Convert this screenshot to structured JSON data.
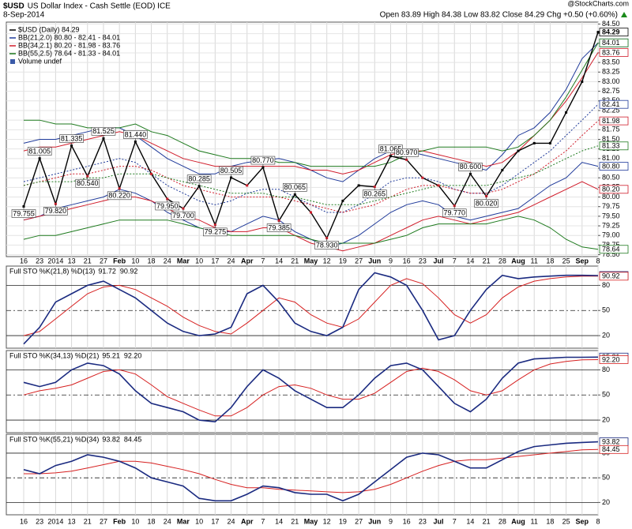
{
  "chart_data": [
    {
      "type": "line",
      "symbol": "$USD",
      "title": "US Dollar Index - Cash Settle (EOD) ICE",
      "date": "8-Sep-2014",
      "source": "@StockCharts.com",
      "quote": "Open 83.89 High 84.38 Low 83.82 Close 84.29 Chg +0.50 (+0.60%)",
      "volume_legend": "Volume undef",
      "categories": [
        "16",
        "23",
        "2014",
        "13",
        "21",
        "27",
        "Feb",
        "10",
        "18",
        "24",
        "Mar",
        "10",
        "17",
        "24",
        "Apr",
        "7",
        "14",
        "21",
        "May",
        "12",
        "19",
        "27",
        "Jun",
        "9",
        "16",
        "23",
        "Jul",
        "7",
        "14",
        "21",
        "28",
        "Aug",
        "11",
        "18",
        "25",
        "Sep",
        "8"
      ],
      "ylim": [
        78.45,
        84.55
      ],
      "yticks": [
        {
          "value": 78.5,
          "label": "78.50"
        },
        78.75,
        {
          "value": 79,
          "label": "79.00"
        },
        79.25,
        {
          "value": 79.5,
          "label": "79.50"
        },
        79.75,
        {
          "value": 80,
          "label": "80.00"
        },
        80.25,
        {
          "value": 80.5,
          "label": "80.50"
        },
        80.75,
        {
          "value": 81,
          "label": "81.00"
        },
        81.25,
        {
          "value": 81.5,
          "label": "81.50"
        },
        81.75,
        {
          "value": 82,
          "label": "82.00"
        },
        82.25,
        {
          "value": 82.5,
          "label": "82.50"
        },
        82.75,
        {
          "value": 83,
          "label": "83.00"
        },
        83.25,
        {
          "value": 83.5,
          "label": "83.50"
        },
        83.75,
        {
          "value": 84,
          "label": "84.00"
        },
        84.25,
        {
          "value": 84.5,
          "label": "84.50"
        }
      ],
      "series": [
        {
          "name": "$USD (Daily) 84.29",
          "color": "#000000",
          "values": [
            79.755,
            81.005,
            79.82,
            81.335,
            80.54,
            81.525,
            80.22,
            81.44,
            80.6,
            79.95,
            79.7,
            80.285,
            79.275,
            80.505,
            80.3,
            80.77,
            79.385,
            80.065,
            79.6,
            78.93,
            79.9,
            80.3,
            80.265,
            81.065,
            80.97,
            80.5,
            80.3,
            79.77,
            80.6,
            80.02,
            80.7,
            81.2,
            81.4,
            81.4,
            82.2,
            83.0,
            84.29
          ],
          "value_labels": [
            "79.755",
            "81.005",
            "79.820",
            "81.335",
            "80.540",
            "81.525",
            "80.220",
            "81.440",
            null,
            "79.950",
            "79.700",
            "80.285",
            "79.275",
            "80.505",
            null,
            "80.770",
            "79.385",
            "80.065",
            null,
            "78.930",
            null,
            null,
            "80.265",
            "81.065",
            "80.970",
            null,
            null,
            "79.770",
            "80.600",
            "80.020",
            null,
            null,
            null,
            null,
            null,
            null,
            null
          ],
          "end_labels": [
            "84.29"
          ]
        },
        {
          "name": "BB(21,2.0) 80.80 - 82.41 - 84.01",
          "color": "#1f3a9a",
          "lower": [
            79.4,
            79.5,
            79.7,
            79.8,
            79.9,
            80.0,
            80.2,
            80.1,
            79.9,
            79.6,
            79.4,
            79.2,
            79.1,
            79.1,
            79.3,
            79.5,
            79.4,
            79.1,
            78.9,
            78.7,
            78.8,
            79.0,
            79.3,
            79.6,
            79.8,
            79.9,
            79.8,
            79.5,
            79.4,
            79.5,
            79.6,
            79.7,
            80.0,
            80.3,
            80.5,
            80.9,
            80.8
          ],
          "values": [
            80.4,
            80.5,
            80.6,
            80.7,
            80.8,
            80.9,
            81.0,
            80.9,
            80.6,
            80.3,
            80.1,
            79.9,
            79.8,
            79.9,
            80.1,
            80.2,
            80.2,
            80.0,
            79.8,
            79.6,
            79.6,
            79.8,
            80.1,
            80.4,
            80.5,
            80.5,
            80.4,
            80.2,
            80.1,
            80.1,
            80.3,
            80.6,
            80.9,
            81.2,
            81.6,
            82.0,
            82.41
          ],
          "upper": [
            81.4,
            81.5,
            81.5,
            81.6,
            81.7,
            81.8,
            81.8,
            81.6,
            81.3,
            81.0,
            80.8,
            80.6,
            80.6,
            80.8,
            80.9,
            80.95,
            81.0,
            80.9,
            80.7,
            80.5,
            80.4,
            80.7,
            81.0,
            81.2,
            81.2,
            81.1,
            81.0,
            80.9,
            80.8,
            80.7,
            81.1,
            81.6,
            81.8,
            82.2,
            82.8,
            83.6,
            84.01
          ],
          "end_labels": [
            "80.80",
            "82.41",
            "84.01"
          ]
        },
        {
          "name": "BB(34,2.1) 80.20 - 81.98 - 83.76",
          "color": "#d01c2a",
          "lower": [
            79.4,
            79.5,
            79.6,
            79.7,
            79.8,
            79.9,
            80.0,
            80.0,
            79.9,
            79.7,
            79.5,
            79.4,
            79.2,
            79.1,
            79.1,
            79.2,
            79.2,
            79.0,
            78.8,
            78.7,
            78.6,
            78.7,
            78.8,
            79.0,
            79.2,
            79.4,
            79.5,
            79.4,
            79.3,
            79.4,
            79.5,
            79.6,
            79.8,
            80.0,
            80.2,
            80.4,
            80.2
          ],
          "values": [
            80.3,
            80.4,
            80.5,
            80.6,
            80.6,
            80.7,
            80.8,
            80.8,
            80.7,
            80.5,
            80.3,
            80.2,
            80.1,
            80.0,
            80.0,
            80.0,
            80.0,
            79.9,
            79.8,
            79.7,
            79.6,
            79.7,
            79.8,
            80.0,
            80.2,
            80.3,
            80.3,
            80.2,
            80.1,
            80.1,
            80.2,
            80.4,
            80.6,
            80.9,
            81.2,
            81.6,
            81.98
          ],
          "upper": [
            81.2,
            81.3,
            81.3,
            81.4,
            81.5,
            81.6,
            81.7,
            81.6,
            81.4,
            81.2,
            81.0,
            80.9,
            80.8,
            80.8,
            80.8,
            80.8,
            80.8,
            80.8,
            80.7,
            80.7,
            80.6,
            80.7,
            80.9,
            81.1,
            81.2,
            81.2,
            81.1,
            81.0,
            80.9,
            80.8,
            80.9,
            81.2,
            81.6,
            82.0,
            82.5,
            83.1,
            83.76
          ],
          "end_labels": [
            "80.20",
            "81.98",
            "83.76"
          ]
        },
        {
          "name": "BB(55,2.5) 78.64 - 81.33 - 84.01",
          "color": "#1e7a1e",
          "lower": [
            78.9,
            79.0,
            79.0,
            79.1,
            79.2,
            79.3,
            79.4,
            79.4,
            79.4,
            79.4,
            79.3,
            79.2,
            79.1,
            79.0,
            79.0,
            79.0,
            79.0,
            79.0,
            78.9,
            78.8,
            78.8,
            78.8,
            78.8,
            78.9,
            79.0,
            79.2,
            79.3,
            79.3,
            79.3,
            79.3,
            79.4,
            79.5,
            79.4,
            79.2,
            78.9,
            78.7,
            78.64
          ],
          "values": [
            80.3,
            80.4,
            80.4,
            80.4,
            80.5,
            80.5,
            80.6,
            80.6,
            80.6,
            80.5,
            80.4,
            80.3,
            80.2,
            80.1,
            80.1,
            80.1,
            80.0,
            80.0,
            79.9,
            79.8,
            79.8,
            79.8,
            79.9,
            80.0,
            80.1,
            80.2,
            80.3,
            80.3,
            80.3,
            80.3,
            80.4,
            80.5,
            80.6,
            80.8,
            81.0,
            81.2,
            81.33
          ],
          "upper": [
            82.0,
            82.0,
            81.9,
            81.9,
            81.8,
            81.8,
            81.8,
            81.9,
            81.7,
            81.6,
            81.4,
            81.2,
            81.1,
            81.0,
            81.0,
            81.0,
            80.9,
            80.9,
            80.8,
            80.8,
            80.8,
            80.8,
            80.8,
            80.9,
            81.1,
            81.2,
            81.3,
            81.3,
            81.3,
            81.3,
            81.2,
            81.3,
            81.6,
            82.0,
            82.6,
            83.3,
            84.01
          ],
          "end_labels": [
            "78.64",
            "81.33",
            "84.01"
          ]
        }
      ]
    },
    {
      "type": "line",
      "title": "Full STO %K(21,8) %D(13)",
      "ylim": [
        5,
        103
      ],
      "yticks": [
        20,
        50,
        80
      ],
      "series": [
        {
          "color": "#1a2a80",
          "value_label": "91.72",
          "values": [
            10,
            30,
            60,
            70,
            80,
            85,
            75,
            65,
            50,
            35,
            25,
            20,
            22,
            30,
            70,
            80,
            60,
            35,
            25,
            20,
            30,
            75,
            95,
            90,
            80,
            50,
            15,
            20,
            50,
            75,
            92,
            88,
            90,
            91,
            92,
            92,
            91.72
          ]
        },
        {
          "color": "#d62020",
          "value_label": "90.92",
          "values": [
            20,
            25,
            40,
            55,
            70,
            78,
            80,
            75,
            65,
            55,
            42,
            32,
            25,
            22,
            35,
            50,
            65,
            60,
            45,
            35,
            30,
            40,
            60,
            80,
            88,
            82,
            65,
            45,
            35,
            45,
            65,
            78,
            85,
            88,
            90,
            91,
            90.92
          ]
        }
      ]
    },
    {
      "type": "line",
      "title": "Full STO %K(34,13) %D(21)",
      "ylim": [
        5,
        103
      ],
      "yticks": [
        20,
        50,
        80
      ],
      "series": [
        {
          "color": "#1a2a80",
          "value_label": "95.21",
          "values": [
            65,
            60,
            65,
            80,
            88,
            85,
            75,
            55,
            40,
            35,
            30,
            20,
            18,
            35,
            60,
            80,
            70,
            55,
            45,
            35,
            35,
            50,
            70,
            85,
            88,
            80,
            60,
            40,
            30,
            45,
            70,
            88,
            93,
            94,
            95,
            95,
            95.21
          ]
        },
        {
          "color": "#d62020",
          "value_label": "92.20",
          "values": [
            50,
            55,
            58,
            62,
            70,
            78,
            80,
            75,
            62,
            48,
            40,
            32,
            25,
            25,
            35,
            50,
            60,
            62,
            58,
            50,
            45,
            45,
            52,
            65,
            78,
            82,
            78,
            68,
            55,
            50,
            55,
            68,
            80,
            87,
            90,
            92,
            92.2
          ]
        }
      ]
    },
    {
      "type": "line",
      "title": "Full STO %K(55,21) %D(34)",
      "ylim": [
        5,
        103
      ],
      "yticks": [
        20,
        50,
        80
      ],
      "series": [
        {
          "color": "#1a2a80",
          "value_label": "93.82",
          "values": [
            60,
            55,
            65,
            70,
            78,
            75,
            70,
            62,
            50,
            45,
            40,
            25,
            22,
            22,
            30,
            40,
            38,
            32,
            30,
            30,
            22,
            30,
            45,
            60,
            75,
            80,
            78,
            70,
            62,
            62,
            72,
            82,
            88,
            90,
            92,
            93,
            93.82
          ]
        },
        {
          "color": "#d62020",
          "value_label": "84.45",
          "values": [
            55,
            55,
            56,
            58,
            62,
            66,
            70,
            70,
            68,
            64,
            60,
            55,
            48,
            42,
            38,
            38,
            36,
            35,
            34,
            33,
            32,
            33,
            36,
            42,
            50,
            58,
            65,
            70,
            72,
            72,
            74,
            76,
            78,
            80,
            82,
            84,
            84.45
          ]
        }
      ]
    }
  ]
}
